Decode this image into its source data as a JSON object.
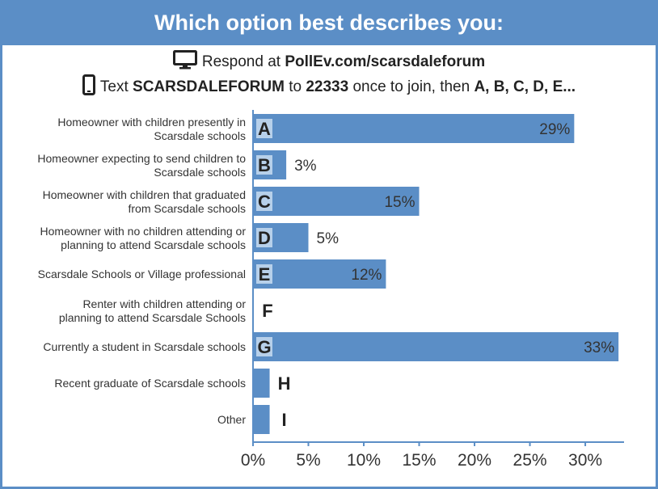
{
  "header": {
    "title": "Which option best describes you:"
  },
  "instructions": {
    "web": {
      "prefix": "Respond at ",
      "url": "PollEv.com/scarsdaleforum"
    },
    "sms": {
      "prefix": "Text ",
      "keyword": "SCARSDALEFORUM",
      "to": " to ",
      "number": "22333",
      "middle": " once to join, then ",
      "options": "A, B, C, D, E..."
    }
  },
  "icons": {
    "web": "monitor-icon",
    "sms": "phone-icon"
  },
  "colors": {
    "accent": "#5b8ec6",
    "bar": "#5b8ec6",
    "letter_box": "#b7d0ea"
  },
  "chart_data": {
    "type": "bar",
    "orientation": "horizontal",
    "categories": [
      "Homeowner with children presently in\nScarsdale schools",
      "Homeowner expecting to send children to\nScarsdale schools",
      "Homeowner with children that graduated\nfrom Scarsdale schools",
      "Homeowner with no children attending or\nplanning to attend Scarsdale schools",
      "Scarsdale Schools or Village professional",
      "Renter with children attending or\nplanning to attend Scarsdale Schools",
      "Currently a student in Scarsdale schools",
      "Recent graduate of Scarsdale schools",
      "Other"
    ],
    "letters": [
      "A",
      "B",
      "C",
      "D",
      "E",
      "F",
      "G",
      "H",
      "I"
    ],
    "values": [
      29,
      3,
      15,
      5,
      12,
      0,
      33,
      1.5,
      1.5
    ],
    "value_labels": [
      "29%",
      "3%",
      "15%",
      "5%",
      "12%",
      "",
      "33%",
      "",
      ""
    ],
    "xlim": [
      0,
      33.5
    ],
    "xticks": [
      0,
      5,
      10,
      15,
      20,
      25,
      30
    ],
    "xtick_labels": [
      "0%",
      "5%",
      "10%",
      "15%",
      "20%",
      "25%",
      "30%"
    ],
    "grid": false
  }
}
